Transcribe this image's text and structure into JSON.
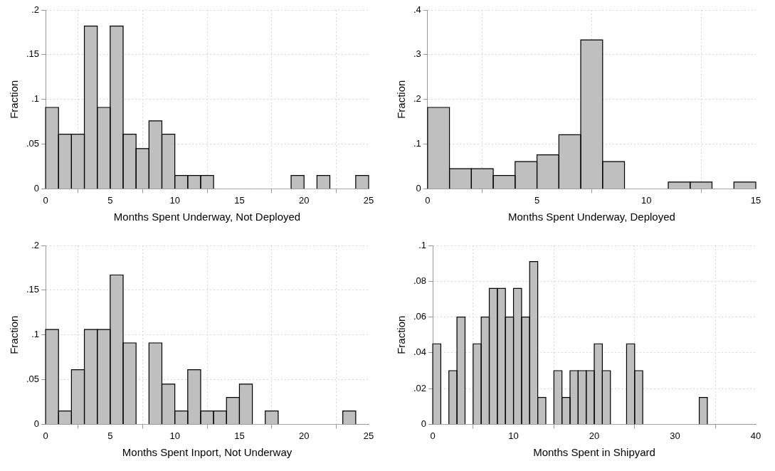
{
  "chart_data": [
    {
      "type": "histogram",
      "xlabel": "Months Spent Underway, Not Deployed",
      "ylabel": "Fraction",
      "color": "#bfbfbf",
      "grid": true,
      "bins": [
        0,
        1,
        2,
        3,
        4,
        5,
        6,
        7,
        8,
        9,
        10,
        11,
        12,
        13,
        14,
        15,
        16,
        17,
        18,
        19,
        20,
        21,
        22,
        23,
        24,
        25
      ],
      "values": [
        0.091,
        0.061,
        0.061,
        0.182,
        0.091,
        0.182,
        0.061,
        0.045,
        0.076,
        0.061,
        0.015,
        0.015,
        0.015,
        0,
        0,
        0,
        0,
        0,
        0,
        0.015,
        0,
        0.015,
        0,
        0,
        0.015
      ],
      "xlim": [
        0,
        25
      ],
      "xticks": [
        0,
        5,
        10,
        15,
        20,
        25
      ],
      "ylim": [
        0,
        0.2
      ],
      "yticks": [
        {
          "value": 0,
          "label": "0"
        },
        {
          "value": 0.05,
          "label": ".05"
        },
        {
          "value": 0.1,
          "label": ".1"
        },
        {
          "value": 0.15,
          "label": ".15"
        },
        {
          "value": 0.2,
          "label": ".2"
        }
      ]
    },
    {
      "type": "histogram",
      "xlabel": "Months Spent Underway, Deployed",
      "ylabel": "Fraction",
      "color": "#bfbfbf",
      "grid": true,
      "bins": [
        0,
        1,
        2,
        3,
        4,
        5,
        6,
        7,
        8,
        9,
        10,
        11,
        12,
        13,
        14,
        15
      ],
      "values": [
        0.182,
        0.045,
        0.045,
        0.03,
        0.061,
        0.076,
        0.121,
        0.333,
        0.061,
        0,
        0,
        0.015,
        0.015,
        0,
        0.015
      ],
      "xlim": [
        0,
        15
      ],
      "xticks": [
        0,
        5,
        10,
        15
      ],
      "ylim": [
        0,
        0.4
      ],
      "yticks": [
        {
          "value": 0,
          "label": "0"
        },
        {
          "value": 0.1,
          "label": ".1"
        },
        {
          "value": 0.2,
          "label": ".2"
        },
        {
          "value": 0.3,
          "label": ".3"
        },
        {
          "value": 0.4,
          "label": ".4"
        }
      ]
    },
    {
      "type": "histogram",
      "xlabel": "Months Spent Inport, Not Underway",
      "ylabel": "Fraction",
      "color": "#bfbfbf",
      "grid": true,
      "bins": [
        0,
        1,
        2,
        3,
        4,
        5,
        6,
        7,
        8,
        9,
        10,
        11,
        12,
        13,
        14,
        15,
        16,
        17,
        18,
        19,
        20,
        21,
        22,
        23,
        24
      ],
      "values": [
        0.106,
        0.015,
        0.061,
        0.106,
        0.106,
        0.167,
        0.091,
        0,
        0.091,
        0.045,
        0.015,
        0.061,
        0.015,
        0.015,
        0.03,
        0.045,
        0,
        0.015,
        0,
        0,
        0,
        0,
        0,
        0.015
      ],
      "xlim": [
        0,
        25
      ],
      "xticks": [
        0,
        5,
        10,
        15,
        20,
        25
      ],
      "ylim": [
        0,
        0.2
      ],
      "yticks": [
        {
          "value": 0,
          "label": "0"
        },
        {
          "value": 0.05,
          "label": ".05"
        },
        {
          "value": 0.1,
          "label": ".1"
        },
        {
          "value": 0.15,
          "label": ".15"
        },
        {
          "value": 0.2,
          "label": ".2"
        }
      ]
    },
    {
      "type": "histogram",
      "xlabel": "Months Spent in Shipyard",
      "ylabel": "Fraction",
      "color": "#bfbfbf",
      "grid": true,
      "bins": [
        0,
        1,
        2,
        3,
        4,
        5,
        6,
        7,
        8,
        9,
        10,
        11,
        12,
        13,
        14,
        15,
        16,
        17,
        18,
        19,
        20,
        21,
        22,
        23,
        24,
        25,
        26,
        27,
        28,
        29,
        30,
        31,
        32,
        33,
        34
      ],
      "values": [
        0.045,
        0,
        0.03,
        0.06,
        0,
        0.045,
        0.06,
        0.076,
        0.076,
        0.06,
        0.076,
        0.06,
        0.091,
        0.015,
        0,
        0.03,
        0.015,
        0.03,
        0.03,
        0.03,
        0.045,
        0.03,
        0,
        0,
        0.045,
        0.03,
        0,
        0,
        0,
        0,
        0,
        0,
        0,
        0.015
      ],
      "xlim": [
        0,
        40
      ],
      "xticks": [
        0,
        10,
        20,
        30,
        40
      ],
      "ylim": [
        0,
        0.1
      ],
      "yticks": [
        {
          "value": 0,
          "label": "0"
        },
        {
          "value": 0.02,
          "label": ".02"
        },
        {
          "value": 0.04,
          "label": ".04"
        },
        {
          "value": 0.06,
          "label": ".06"
        },
        {
          "value": 0.08,
          "label": ".08"
        },
        {
          "value": 0.1,
          "label": ".1"
        }
      ]
    }
  ]
}
